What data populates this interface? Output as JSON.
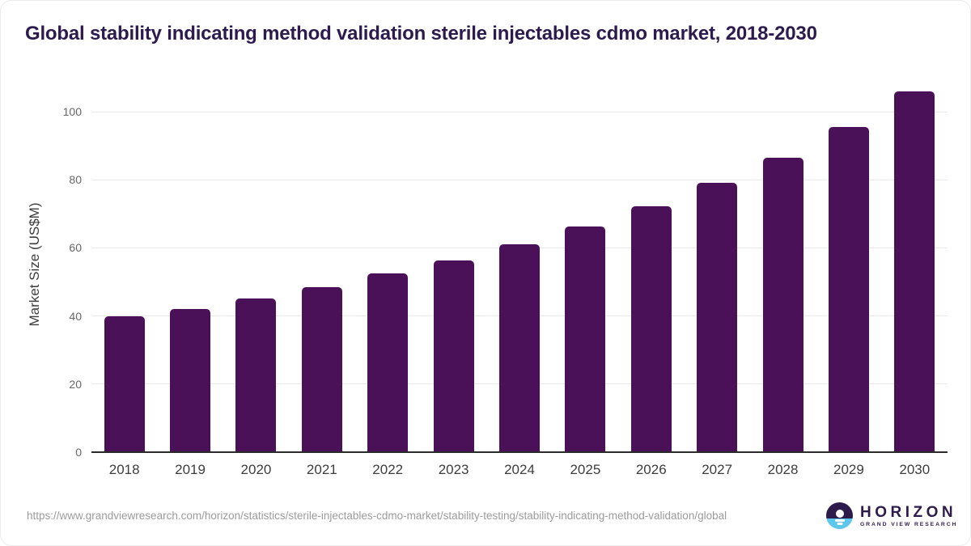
{
  "page": {
    "title": "Global stability indicating method validation sterile injectables cdmo market, 2018-2030"
  },
  "chart_data": {
    "type": "bar",
    "title": "Global stability indicating method validation sterile injectables cdmo market, 2018-2030",
    "categories": [
      "2018",
      "2019",
      "2020",
      "2021",
      "2022",
      "2023",
      "2024",
      "2025",
      "2026",
      "2027",
      "2028",
      "2029",
      "2030"
    ],
    "values": [
      39.8,
      42.0,
      45.1,
      48.5,
      52.4,
      56.2,
      61.0,
      66.3,
      72.3,
      79.0,
      86.4,
      95.4,
      106.0
    ],
    "xlabel": "",
    "ylabel": "Market Size (US$M)",
    "ylim": [
      0,
      110
    ],
    "yticks": [
      0,
      20,
      40,
      60,
      80,
      100
    ],
    "grid": "horizontal",
    "legend_position": "none",
    "bar_color": "#4a1159"
  },
  "footer": {
    "source_url": "https://www.grandviewresearch.com/horizon/statistics/sterile-injectables-cdmo-market/stability-testing/stability-indicating-method-validation/global",
    "logo": {
      "name": "HORIZON",
      "subtitle": "GRAND VIEW RESEARCH"
    }
  },
  "colors": {
    "title_text": "#2d1b4e",
    "bar": "#4a1159",
    "gridline": "#e9e9e9",
    "axis_line": "#2b2b2b",
    "tick_label": "#666666",
    "axis_title": "#3d3d3d",
    "url_text": "#9b9b9b",
    "logo_purple": "#2d1b4c",
    "logo_blue": "#5ec5ed"
  }
}
